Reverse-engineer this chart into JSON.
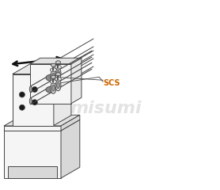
{
  "bg_color": "#ffffff",
  "line_color": "#444444",
  "watermark_color": "#cccccc",
  "watermark_text": "misumi",
  "scs_color": "#cc6600",
  "scs_text": "SCS",
  "arrow_color": "#111111",
  "figsize": [
    2.78,
    2.4
  ],
  "dpi": 100,
  "face_light": "#f5f5f5",
  "face_mid": "#e8e8e8",
  "face_dark": "#d8d8d8",
  "collar_face": "#e0e0e0",
  "hole_color": "#1a1a1a"
}
